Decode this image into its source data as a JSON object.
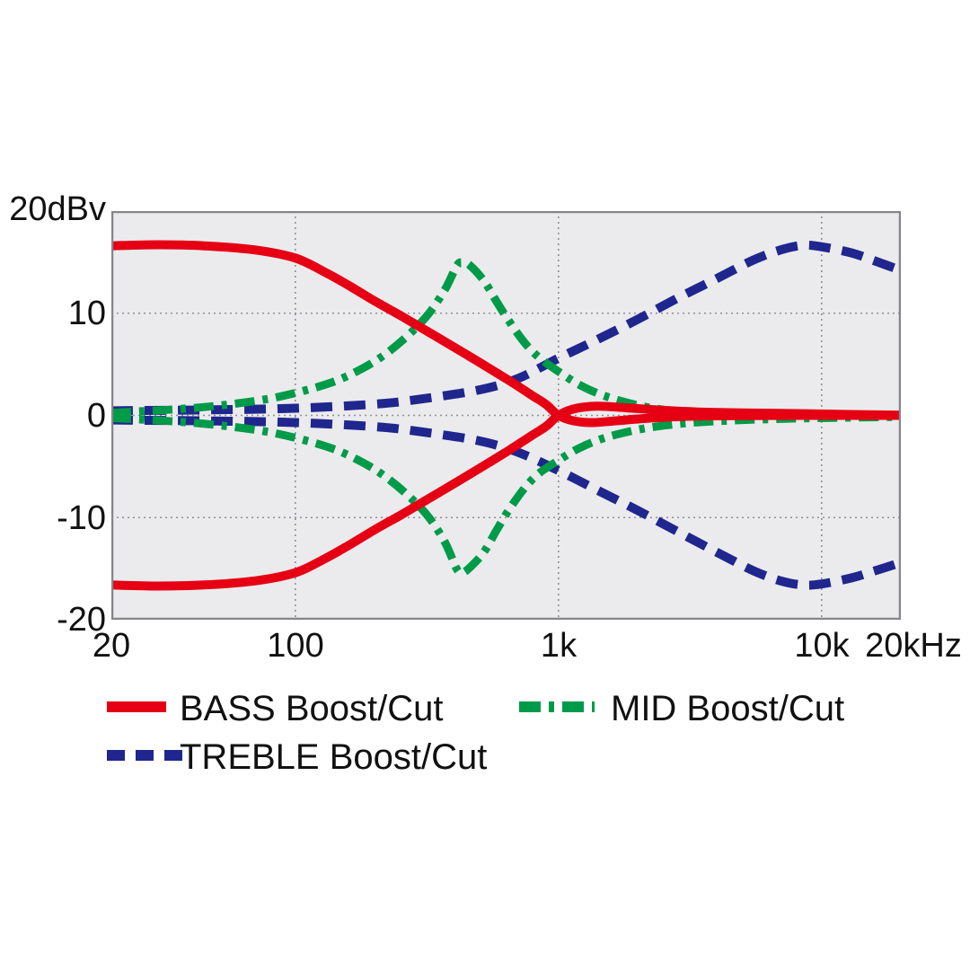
{
  "chart_data": {
    "type": "line",
    "title": "",
    "x_scale": "log",
    "axes": {
      "f_min": 20,
      "f_max": 20000,
      "db_min": -20,
      "db_max": 20,
      "x_ticks": [
        {
          "f": 20,
          "label": "20"
        },
        {
          "f": 100,
          "label": "100"
        },
        {
          "f": 1000,
          "label": "1k"
        },
        {
          "f": 10000,
          "label": "10k"
        },
        {
          "f": 20000,
          "label": "20kHz"
        }
      ],
      "y_ticks": [
        {
          "db": 20,
          "label": "20dBv"
        },
        {
          "db": 10,
          "label": "10"
        },
        {
          "db": 0,
          "label": "0"
        },
        {
          "db": -10,
          "label": "-10"
        },
        {
          "db": -20,
          "label": "-20"
        }
      ],
      "v_gridlines_hz": [
        100,
        1000,
        10000
      ],
      "h_gridlines_db": [
        10,
        0,
        -10
      ]
    },
    "colors": {
      "plot_bg": "#ebebed",
      "border": "#85858a",
      "grid": "#8f8f94",
      "text": "#111111",
      "bass": "#e60014",
      "mid": "#009b48",
      "treble": "#1f268e"
    },
    "series": [
      {
        "name": "BASS Boost/Cut",
        "color": "#e60014",
        "style": "solid",
        "width": 10,
        "curves": {
          "boost": [
            [
              20,
              16.6
            ],
            [
              30,
              16.7
            ],
            [
              45,
              16.6
            ],
            [
              70,
              16.2
            ],
            [
              100,
              15.4
            ],
            [
              130,
              14.0
            ],
            [
              160,
              12.7
            ],
            [
              200,
              11.2
            ],
            [
              250,
              9.8
            ],
            [
              300,
              8.6
            ],
            [
              400,
              6.7
            ],
            [
              500,
              5.2
            ],
            [
              650,
              3.4
            ],
            [
              800,
              1.9
            ],
            [
              900,
              1.05
            ],
            [
              1000,
              0
            ],
            [
              1150,
              -0.55
            ],
            [
              1350,
              -0.7
            ],
            [
              1700,
              -0.5
            ],
            [
              2300,
              -0.25
            ],
            [
              3200,
              -0.08
            ],
            [
              5000,
              -0.02
            ],
            [
              10000,
              0
            ],
            [
              20000,
              0
            ]
          ],
          "cut": [
            [
              20,
              -16.6
            ],
            [
              30,
              -16.7
            ],
            [
              45,
              -16.6
            ],
            [
              70,
              -16.2
            ],
            [
              100,
              -15.4
            ],
            [
              130,
              -14.0
            ],
            [
              160,
              -12.7
            ],
            [
              200,
              -11.2
            ],
            [
              250,
              -9.8
            ],
            [
              300,
              -8.6
            ],
            [
              400,
              -6.7
            ],
            [
              500,
              -5.2
            ],
            [
              650,
              -3.4
            ],
            [
              800,
              -1.9
            ],
            [
              900,
              -1.05
            ],
            [
              1000,
              0
            ],
            [
              1150,
              0.65
            ],
            [
              1400,
              0.9
            ],
            [
              1800,
              0.75
            ],
            [
              2500,
              0.5
            ],
            [
              3500,
              0.32
            ],
            [
              5000,
              0.25
            ],
            [
              8000,
              0.18
            ],
            [
              12000,
              0.1
            ],
            [
              20000,
              0.03
            ]
          ]
        }
      },
      {
        "name": "MID Boost/Cut",
        "color": "#009b48",
        "style": "dashdot",
        "width": 9,
        "curves": {
          "boost": [
            [
              20,
              0.25
            ],
            [
              40,
              0.7
            ],
            [
              70,
              1.4
            ],
            [
              100,
              2.2
            ],
            [
              140,
              3.3
            ],
            [
              180,
              4.6
            ],
            [
              220,
              6.0
            ],
            [
              270,
              7.9
            ],
            [
              320,
              9.9
            ],
            [
              370,
              12.3
            ],
            [
              410,
              14.6
            ],
            [
              430,
              15.0
            ],
            [
              460,
              14.7
            ],
            [
              520,
              13.2
            ],
            [
              580,
              11.2
            ],
            [
              650,
              9.2
            ],
            [
              750,
              7.0
            ],
            [
              850,
              5.6
            ],
            [
              1000,
              4.3
            ],
            [
              1200,
              3.0
            ],
            [
              1500,
              1.9
            ],
            [
              2000,
              1.0
            ],
            [
              2600,
              0.5
            ],
            [
              3500,
              0.2
            ],
            [
              5000,
              0.08
            ],
            [
              10000,
              0.02
            ],
            [
              20000,
              0
            ]
          ],
          "cut": [
            [
              20,
              -0.25
            ],
            [
              40,
              -0.7
            ],
            [
              70,
              -1.4
            ],
            [
              100,
              -2.2
            ],
            [
              140,
              -3.3
            ],
            [
              180,
              -4.6
            ],
            [
              220,
              -6.0
            ],
            [
              270,
              -7.9
            ],
            [
              320,
              -9.9
            ],
            [
              370,
              -12.4
            ],
            [
              410,
              -15.0
            ],
            [
              430,
              -15.4
            ],
            [
              460,
              -14.9
            ],
            [
              520,
              -13.4
            ],
            [
              580,
              -11.3
            ],
            [
              650,
              -9.2
            ],
            [
              750,
              -7.0
            ],
            [
              850,
              -5.6
            ],
            [
              1000,
              -4.4
            ],
            [
              1200,
              -3.2
            ],
            [
              1500,
              -2.2
            ],
            [
              2000,
              -1.4
            ],
            [
              2600,
              -0.95
            ],
            [
              3500,
              -0.65
            ],
            [
              5000,
              -0.45
            ],
            [
              8000,
              -0.3
            ],
            [
              12000,
              -0.22
            ],
            [
              20000,
              -0.15
            ]
          ]
        }
      },
      {
        "name": "TREBLE Boost/Cut",
        "color": "#1f268e",
        "style": "dash",
        "width": 10,
        "curves": {
          "boost": [
            [
              20,
              0.45
            ],
            [
              50,
              0.55
            ],
            [
              100,
              0.7
            ],
            [
              200,
              1.1
            ],
            [
              300,
              1.6
            ],
            [
              500,
              2.5
            ],
            [
              700,
              3.6
            ],
            [
              1000,
              5.6
            ],
            [
              1400,
              7.4
            ],
            [
              2000,
              9.4
            ],
            [
              2800,
              11.4
            ],
            [
              4000,
              13.4
            ],
            [
              5500,
              15.2
            ],
            [
              7000,
              16.2
            ],
            [
              8500,
              16.65
            ],
            [
              10000,
              16.5
            ],
            [
              13000,
              15.9
            ],
            [
              16000,
              15.1
            ],
            [
              20000,
              14.2
            ]
          ],
          "cut": [
            [
              20,
              -0.45
            ],
            [
              50,
              -0.55
            ],
            [
              100,
              -0.7
            ],
            [
              200,
              -1.1
            ],
            [
              300,
              -1.6
            ],
            [
              500,
              -2.5
            ],
            [
              700,
              -3.6
            ],
            [
              1000,
              -5.4
            ],
            [
              1400,
              -7.3
            ],
            [
              2000,
              -9.3
            ],
            [
              2800,
              -11.3
            ],
            [
              4000,
              -13.4
            ],
            [
              5500,
              -15.2
            ],
            [
              7000,
              -16.2
            ],
            [
              8500,
              -16.6
            ],
            [
              10000,
              -16.5
            ],
            [
              13000,
              -15.9
            ],
            [
              16000,
              -15.2
            ],
            [
              20000,
              -14.4
            ]
          ]
        }
      }
    ],
    "legend_position": "below-chart"
  }
}
